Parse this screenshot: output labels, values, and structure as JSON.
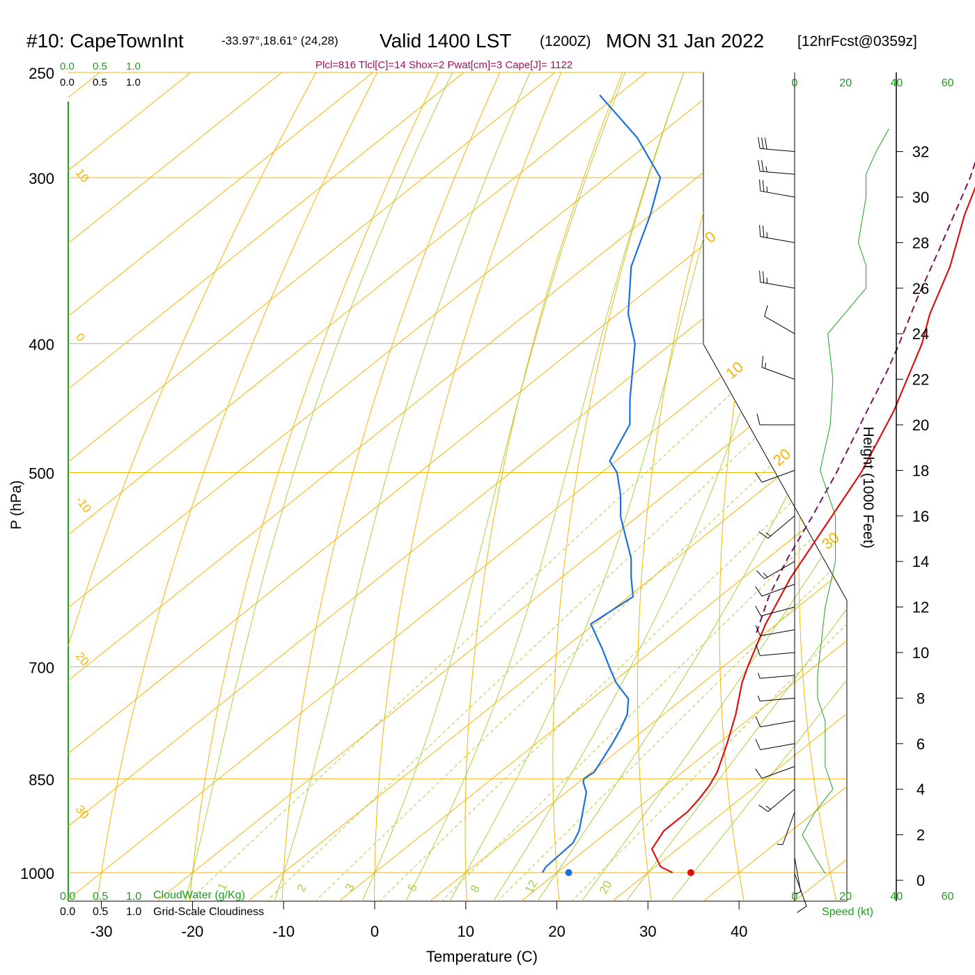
{
  "header": {
    "station": "#10: CapeTownInt",
    "coords": "-33.97°,18.61° (24,28)",
    "valid": "Valid 1400 LST",
    "zulu": "(1200Z)",
    "date": "MON 31 Jan 2022",
    "forecast": "[12hrFcst@0359z]",
    "indices": "Plcl=816 Tlcl[C]=14 Shox=2 Pwat[cm]=3 Cape[J]= 1122"
  },
  "labels": {
    "cloudwater": "CloudWater (g/Kg)",
    "cloudiness": "Grid-Scale Cloudiness",
    "speed": "Speed (kt)",
    "height_axis": "Height (1000 Feet)"
  },
  "scale_ticks": [
    "0.0",
    "0.5",
    "1.0"
  ],
  "colors": {
    "isotherm": "#f5b400",
    "dry_adiabat": "#f5b400",
    "moist_adiabat": "#a8d040",
    "mixing_ratio": "#a8d040",
    "temperature": "#e01010",
    "dewpoint": "#1a6fe0",
    "parcel": "#7a1060",
    "wind_speed": "#20a020",
    "indices": "#a0105a",
    "green_text": "#1aa01a"
  },
  "chart_data": {
    "type": "line",
    "title": "#10: CapeTownInt Valid 1400 LST (1200Z) MON 31 Jan 2022 [12hrFcst@0359z]",
    "xlabel": "Temperature (C)",
    "ylabel": "P (hPa)",
    "y2label": "Height (1000 Feet)",
    "xlim": [
      -30,
      40
    ],
    "ylim": [
      1000,
      250
    ],
    "x_ticks": [
      "-30",
      "-20",
      "-10",
      "0",
      "10",
      "20",
      "30",
      "40"
    ],
    "pressure_ticks": [
      "250",
      "300",
      "400",
      "500",
      "700",
      "850",
      "1000"
    ],
    "height_ticks": [
      "0",
      "2",
      "4",
      "6",
      "8",
      "10",
      "12",
      "14",
      "16",
      "18",
      "20",
      "22",
      "24",
      "26",
      "28",
      "30",
      "32"
    ],
    "speed_ticks": [
      "0",
      "20",
      "40",
      "60"
    ],
    "dry_adiabat_labels": [
      "10",
      "0",
      "-10",
      "20",
      "30"
    ],
    "isotherm_labels": [
      "0",
      "10",
      "20",
      "30"
    ],
    "mixing_ratio_labels": [
      "1",
      "2",
      "3",
      "5",
      "8",
      "12",
      "20"
    ],
    "series": [
      {
        "name": "Temperature",
        "p": [
          1000,
          990,
          960,
          930,
          900,
          880,
          860,
          840,
          800,
          760,
          720,
          700,
          650,
          600,
          550,
          500,
          450,
          400,
          380,
          350,
          320,
          300,
          290,
          270
        ],
        "t": [
          32.7,
          30.6,
          27.2,
          26.0,
          26.0,
          25.5,
          24.8,
          23.8,
          21.0,
          17.9,
          14.3,
          12.7,
          8.8,
          5.2,
          2.0,
          -1.5,
          -6.3,
          -12.5,
          -15.7,
          -20.0,
          -25.5,
          -29.0,
          -31.0,
          -35.0
        ]
      },
      {
        "name": "Dewpoint",
        "p": [
          1000,
          990,
          950,
          930,
          900,
          870,
          855,
          850,
          840,
          800,
          780,
          760,
          740,
          720,
          700,
          680,
          650,
          620,
          600,
          580,
          540,
          520,
          500,
          490,
          460,
          440,
          400,
          380,
          350,
          320,
          300,
          280,
          260
        ],
        "t": [
          18.4,
          18.0,
          17.7,
          16.7,
          14.5,
          12.2,
          10.5,
          10.1,
          10.3,
          8.4,
          7.3,
          6.0,
          4.0,
          0.5,
          -2.5,
          -5.5,
          -10.4,
          -9.5,
          -12.3,
          -15.0,
          -21.8,
          -24.8,
          -28.3,
          -30.7,
          -33.5,
          -37.0,
          -44.0,
          -48.8,
          -55.0,
          -60.0,
          -64.0,
          -72.0,
          -82.0
        ]
      },
      {
        "name": "Parcel",
        "p": [
          660,
          620,
          580,
          540,
          500,
          460,
          420,
          400,
          370,
          340,
          300,
          280,
          262
        ],
        "t": [
          9.0,
          5.4,
          2.2,
          -0.8,
          -4.2,
          -8.2,
          -12.5,
          -15.0,
          -19.2,
          -23.5,
          -30.0,
          -34.0,
          -37.5
        ]
      }
    ],
    "surface_points": {
      "temperature": 34.7,
      "dewpoint": 21.3
    },
    "wind_speed_profile": {
      "height_kft": [
        0.3,
        1.0,
        2.0,
        3.0,
        4.0,
        5.0,
        6.0,
        7.0,
        8.0,
        9.0,
        10.0,
        12.0,
        14.0,
        16.0,
        18.0,
        20.0,
        22.0,
        24.0,
        26.0,
        27.0,
        28.0,
        30.0,
        31.0,
        32.0,
        33.0
      ],
      "speed_kt": [
        12,
        8,
        3,
        8,
        15,
        12,
        12,
        12,
        9,
        9,
        10,
        12,
        16,
        16,
        10,
        14,
        15,
        13,
        28,
        28,
        25,
        28,
        28,
        32,
        37
      ]
    },
    "wind_barbs": {
      "height_kft": [
        0.3,
        1.0,
        2.0,
        3.0,
        4.0,
        5.0,
        6.0,
        7.0,
        8.0,
        9.0,
        10.0,
        11.0,
        12.0,
        13.0,
        14.0,
        16.0,
        18.0,
        20.0,
        22.0,
        24.0,
        26.0,
        28.0,
        30.0,
        31.0,
        32.0
      ],
      "dir_deg": [
        160,
        170,
        180,
        200,
        230,
        250,
        260,
        260,
        265,
        265,
        265,
        260,
        255,
        250,
        240,
        230,
        250,
        270,
        290,
        300,
        280,
        280,
        280,
        275,
        275
      ],
      "speed_kt": [
        12,
        8,
        3,
        8,
        15,
        12,
        12,
        12,
        9,
        9,
        10,
        11,
        12,
        14,
        16,
        16,
        10,
        14,
        15,
        13,
        28,
        25,
        28,
        28,
        32
      ]
    }
  }
}
